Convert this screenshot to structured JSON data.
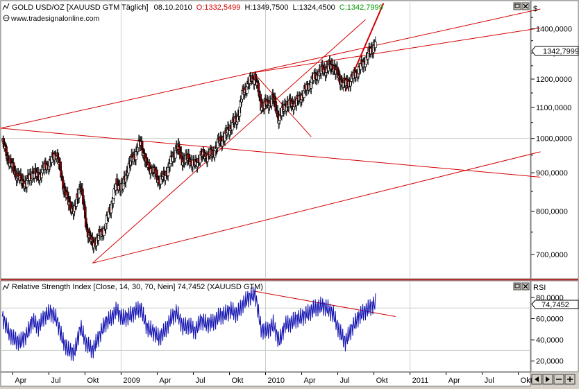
{
  "header": {
    "instrument": "GOLD USD/OZ [XAUUSD GTM  Täglich]",
    "date": "08.10.2010",
    "ohlc": [
      {
        "text": "O:1332,5499",
        "color": "#d40000"
      },
      {
        "text": "H:1349,7500",
        "color": "#000000"
      },
      {
        "text": "L:1324,4500",
        "color": "#000000"
      },
      {
        "text": "C:1342,7999",
        "color": "#009900"
      }
    ],
    "website": "www.tradesignalonline.com",
    "currency": "$",
    "last_price": "1342,7999"
  },
  "rsi_panel": {
    "legend": "Relative Strength Index [Close, 14, 30, 70, Nein] 74,7452 (XAUUSD GTM)",
    "axis_label": "RSI",
    "last_value": "74,7452"
  },
  "colors": {
    "background": "#ffffff",
    "frame": "#d4d0c8",
    "trendline": "#d40000",
    "rsi_line": "#1010b0",
    "candle_up": "#ffffff",
    "candle_down": "#8b0000",
    "grid": "#c8d0c8"
  },
  "icons": [
    "maximize-icon",
    "close-icon",
    "scroll-left-icon",
    "scroll-right-icon",
    "zoom-out-icon",
    "zoom-in-icon"
  ],
  "chart_data": [
    {
      "type": "candlestick",
      "title": "GOLD USD/OZ [XAUUSD GTM  Täglich]",
      "x_ticks": [
        "Apr",
        "Jul",
        "Okt",
        "2009",
        "Apr",
        "Jul",
        "Okt",
        "2010",
        "Apr",
        "Jul",
        "Okt",
        "2011",
        "Apr",
        "Jul",
        "Okt"
      ],
      "x_range": [
        "2008-03",
        "2011-11"
      ],
      "y_ticks": [
        700,
        800,
        900,
        1000,
        1100,
        1200,
        1300,
        1400
      ],
      "y_tick_labels": [
        "700,0000",
        "800,0000",
        "900,0000",
        "1000,0000",
        "1100,0000",
        "1200,0000",
        "1300,0000",
        "1400,0000"
      ],
      "ylim": [
        650,
        1520
      ],
      "scale": "log",
      "grid": true,
      "series": [
        {
          "x": [
            "2008-03",
            "2008-03",
            "2008-04",
            "2008-04",
            "2008-05",
            "2008-05",
            "2008-06",
            "2008-06",
            "2008-07",
            "2008-07",
            "2008-08",
            "2008-08",
            "2008-09",
            "2008-09",
            "2008-10",
            "2008-10",
            "2008-11",
            "2008-11",
            "2008-12",
            "2008-12",
            "2009-01",
            "2009-01",
            "2009-02",
            "2009-02",
            "2009-03",
            "2009-03",
            "2009-04",
            "2009-04",
            "2009-05",
            "2009-05",
            "2009-06",
            "2009-06",
            "2009-07",
            "2009-07",
            "2009-08",
            "2009-08",
            "2009-09",
            "2009-09",
            "2009-10",
            "2009-10",
            "2009-11",
            "2009-11",
            "2009-12",
            "2009-12",
            "2010-01",
            "2010-01",
            "2010-02",
            "2010-02",
            "2010-03",
            "2010-03",
            "2010-04",
            "2010-04",
            "2010-05",
            "2010-05",
            "2010-06",
            "2010-06",
            "2010-07",
            "2010-07",
            "2010-08",
            "2010-08",
            "2010-09",
            "2010-09",
            "2010-10"
          ],
          "close": [
            990,
            940,
            905,
            880,
            870,
            900,
            890,
            915,
            930,
            960,
            875,
            820,
            800,
            870,
            760,
            720,
            740,
            760,
            810,
            870,
            860,
            920,
            950,
            990,
            920,
            910,
            880,
            890,
            930,
            975,
            935,
            940,
            920,
            950,
            950,
            955,
            990,
            1005,
            1040,
            1060,
            1150,
            1190,
            1210,
            1110,
            1110,
            1130,
            1060,
            1110,
            1110,
            1120,
            1150,
            1180,
            1210,
            1230,
            1240,
            1250,
            1200,
            1180,
            1200,
            1230,
            1260,
            1300,
            1342.8
          ]
        }
      ]
    },
    {
      "type": "line",
      "title": "Relative Strength Index [Close, 14, 30, 70, Nein] 74,7452 (XAUUSD GTM)",
      "y_ticks": [
        20,
        40,
        60,
        80
      ],
      "y_tick_labels": [
        "20,0000",
        "40,0000",
        "60,0000",
        "80,0000"
      ],
      "ylim": [
        10,
        95
      ],
      "grid": true,
      "series": [
        {
          "name": "RSI",
          "values": [
            62,
            48,
            40,
            38,
            44,
            58,
            52,
            62,
            66,
            60,
            40,
            30,
            28,
            52,
            36,
            30,
            42,
            55,
            60,
            68,
            60,
            62,
            66,
            70,
            52,
            48,
            42,
            48,
            60,
            66,
            52,
            54,
            48,
            58,
            55,
            56,
            62,
            64,
            68,
            64,
            74,
            80,
            84,
            50,
            48,
            55,
            38,
            54,
            56,
            60,
            62,
            66,
            70,
            72,
            70,
            64,
            48,
            38,
            50,
            60,
            66,
            70,
            74.7452
          ]
        }
      ]
    }
  ]
}
